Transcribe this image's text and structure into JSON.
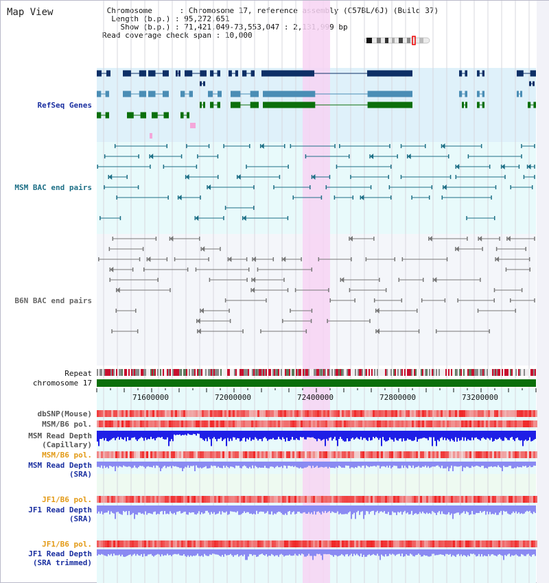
{
  "app": {
    "title": "Map View"
  },
  "info": {
    "chromosome_key": "Chromosome",
    "chromosome_value": "Chromosome 17, reference assembly (C57BL/6J) (Build 37)",
    "length_key": "Length (b.p.)",
    "length_value": "95,272,651",
    "show_key": "Show (b.p.)",
    "show_value": "71,421,049-73,553,047 : 2,131,999 bp",
    "span_key": "Read coverage check span",
    "span_value": "10,000"
  },
  "tracks": {
    "refseq": "RefSeq Genes",
    "msm_bac": "MSM BAC end pairs",
    "b6n_bac": "B6N BAC end pairs",
    "repeat": "Repeat",
    "chromosome": "chromosome 17",
    "dbsnp": "dbSNP(Mouse)",
    "msm_b6_pol_1": "MSM/B6 pol.",
    "msm_read_depth_cap_1": "MSM Read Depth",
    "msm_read_depth_cap_2": "(Capillary)",
    "msm_b6_pol_2": "MSM/B6 pol.",
    "msm_read_depth_sra_1": "MSM Read Depth",
    "msm_read_depth_sra_2": "(SRA)",
    "jf1_b6_pol_1": "JF1/B6 pol.",
    "jf1_read_depth_sra_1": "JF1 Read Depth",
    "jf1_read_depth_sra_2": "(SRA)",
    "jf1_b6_pol_2": "JF1/B6 pol.",
    "jf1_read_depth_trim_1": "JF1 Read Depth",
    "jf1_read_depth_trim_2": "(SRA trimmed)"
  },
  "axis": {
    "ticks": [
      "71600000",
      "72000000",
      "72400000",
      "72800000",
      "73200000"
    ]
  },
  "colors": {
    "navy_gene": "#0d2f66",
    "blue_gene": "#4a8db5",
    "green_gene": "#0b6f0b",
    "pink_highlight": "#f7d4f3",
    "chromosome_bar": "#0b6f0b",
    "depth_blue": "#1f1fe6",
    "depth_light": "#8a8af2"
  }
}
